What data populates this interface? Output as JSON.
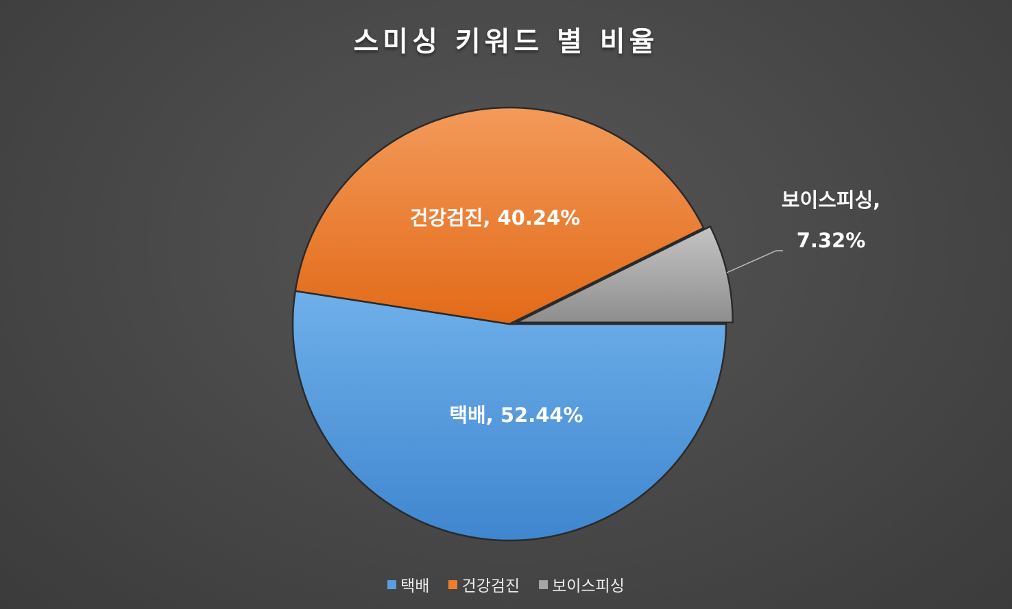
{
  "chart_data": {
    "type": "pie",
    "title": "스미싱 키워드 별 비율",
    "slices": [
      {
        "label": "택배",
        "value": 52.44,
        "display": "택배, 52.44%",
        "color": "#5a9ee0"
      },
      {
        "label": "건강검진",
        "value": 40.24,
        "display": "건강검진, 40.24%",
        "color": "#f07d2b"
      },
      {
        "label": "보이스피싱",
        "value": 7.32,
        "display": "보이스피싱,",
        "display2": "7.32%",
        "color": "#a6a6a6"
      }
    ],
    "legend": {
      "position": "bottom"
    }
  }
}
